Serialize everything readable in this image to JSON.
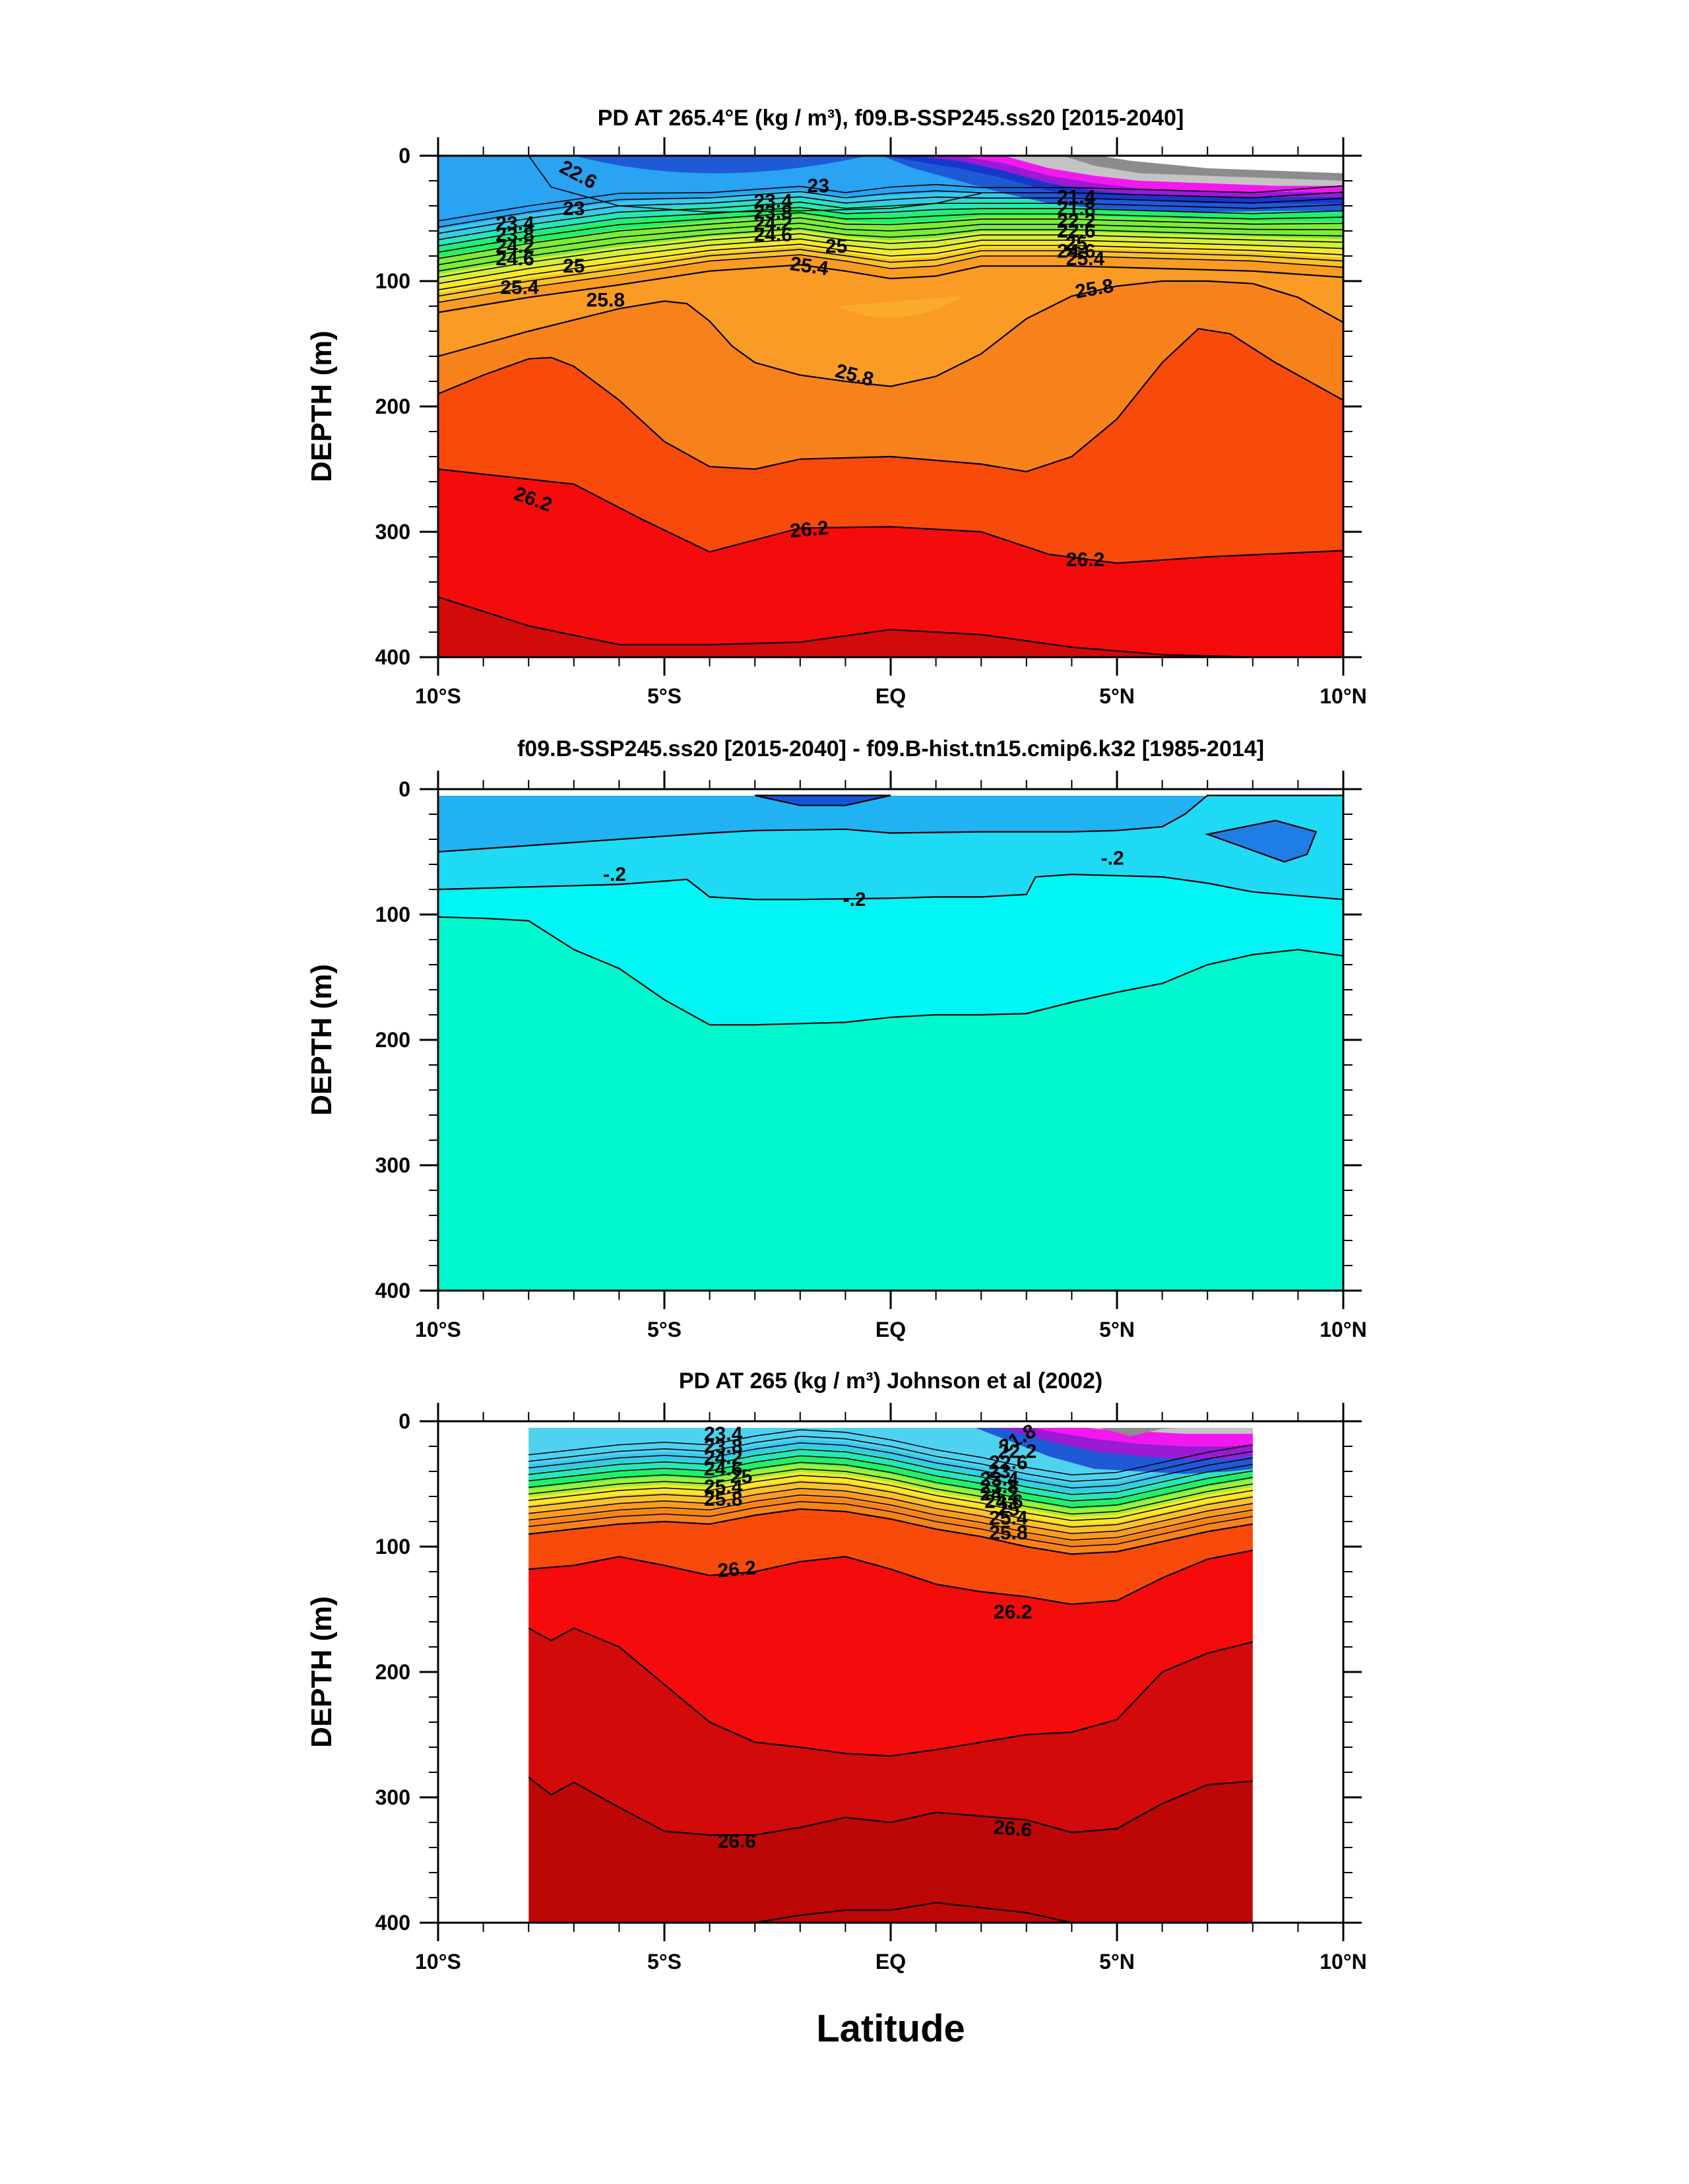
{
  "figure": {
    "xlabel": "Latitude",
    "colors": {
      "g230": "#29a3f2",
      "g226": "#1f5ad6",
      "g225": "#1737cc",
      "g238": "#4fd2f0",
      "g244": "#23f06a",
      "g246": "#a8f038",
      "g250": "#f7e92a",
      "g254": "#f99b24",
      "g258": "#f7821c",
      "g262": "#f74a0b",
      "g266": "#f50b0b",
      "g270": "#d20a0a",
      "g275": "#bd0606",
      "purple": "#9a1ad6",
      "magenta": "#f418f0",
      "gray1": "#c4c4c4",
      "gray2": "#8c8c8c",
      "d_m3": "#1f7de6",
      "d_m2": "#21b2f2",
      "d_m1": "#1fdaf5",
      "d_m0": "#00f6f4",
      "d_0": "#00f8cf",
      "d_deep": "#1454dc"
    }
  },
  "chart_data": [
    {
      "type": "contour",
      "title": "PD AT 265.4°E (kg / m³), f09.B-SSP245.ss20 [2015-2040]",
      "xlabel": "",
      "ylabel": "DEPTH (m)",
      "xlim": [
        -10,
        10
      ],
      "ylim": [
        400,
        0
      ],
      "x_ticks": [
        "10°S",
        "5°S",
        "EQ",
        "5°N",
        "10°N"
      ],
      "y_ticks": [
        "0",
        "100",
        "200",
        "300",
        "400"
      ],
      "contour_labels": [
        "22.6",
        "23",
        "23",
        "23.4",
        "23.8",
        "24.2",
        "24.6",
        "25",
        "25",
        "25.4",
        "25.4",
        "25.8",
        "25.8",
        "25.8",
        "26.2",
        "26.2",
        "26.2",
        "21.4",
        "25.4",
        "23.4",
        "23.8",
        "24.2",
        "24.6",
        "21.8",
        "22.2",
        "22.6",
        "25",
        "24.6"
      ],
      "isopycnals": [
        {
          "level": 26.2,
          "x": [
            -10,
            -7,
            -5.5,
            -4,
            -2,
            0,
            2,
            3.5,
            5,
            7,
            10
          ],
          "depth": [
            250,
            262,
            290,
            316,
            297,
            296,
            300,
            318,
            325,
            320,
            315
          ]
        },
        {
          "level": 26.0,
          "x": [
            -10,
            -9,
            -8,
            -7.5,
            -7,
            -6,
            -5,
            -4,
            -3,
            -2,
            0,
            2,
            3,
            4,
            5,
            6,
            6.8,
            7.5,
            8.5,
            10
          ],
          "depth": [
            190,
            175,
            162,
            161,
            168,
            195,
            228,
            248,
            250,
            242,
            240,
            246,
            252,
            240,
            210,
            165,
            138,
            142,
            165,
            195
          ]
        },
        {
          "level": 25.8,
          "x": [
            -10,
            -8,
            -6,
            -5,
            -4.5,
            -4,
            -3.5,
            -3,
            -2,
            -1,
            0,
            1,
            2,
            3,
            4,
            5,
            6,
            7,
            8,
            9,
            10
          ],
          "depth": [
            160,
            140,
            122,
            116,
            118,
            132,
            152,
            165,
            175,
            180,
            184,
            176,
            158,
            130,
            112,
            104,
            100,
            100,
            102,
            113,
            133
          ]
        },
        {
          "level": 25.4,
          "x": [
            -10,
            -8,
            -6,
            -4,
            -2,
            -1,
            0,
            1,
            2,
            4,
            6,
            8,
            10
          ],
          "depth": [
            125,
            113,
            103,
            92,
            87,
            92,
            98,
            96,
            88,
            88,
            90,
            92,
            97
          ]
        }
      ]
    },
    {
      "type": "contour",
      "title": "f09.B-SSP245.ss20 [2015-2040] - f09.B-hist.tn15.cmip6.k32 [1985-2014]",
      "xlabel": "",
      "ylabel": "DEPTH (m)",
      "xlim": [
        -10,
        10
      ],
      "ylim": [
        400,
        0
      ],
      "x_ticks": [
        "10°S",
        "5°S",
        "EQ",
        "5°N",
        "10°N"
      ],
      "y_ticks": [
        "0",
        "100",
        "200",
        "300",
        "400"
      ],
      "contour_labels": [
        "-.2",
        "-.2",
        "-.2"
      ],
      "isopleths": [
        {
          "level": 0.0,
          "x": [
            -10,
            -9,
            -8,
            -7,
            -6,
            -5,
            -4,
            -3,
            -2,
            -1,
            0,
            1,
            2,
            3,
            4,
            5,
            6,
            7,
            8,
            9,
            10
          ],
          "depth": [
            102,
            103,
            105,
            128,
            143,
            168,
            188,
            188,
            187,
            186,
            182,
            180,
            180,
            179,
            170,
            162,
            155,
            140,
            132,
            128,
            133
          ]
        },
        {
          "level": -0.1,
          "x": [
            -10,
            -8,
            -6,
            -4.5,
            -4,
            -3,
            -2,
            0,
            1,
            2,
            3,
            3.2,
            4,
            6,
            7,
            8,
            10
          ],
          "depth": [
            80,
            78,
            76,
            72,
            86,
            88,
            88,
            87,
            86,
            86,
            84,
            70,
            68,
            70,
            75,
            82,
            88
          ]
        },
        {
          "level": -0.2,
          "x": [
            -10,
            -8,
            -6,
            -4,
            -3,
            -1,
            0,
            2,
            4,
            5,
            6,
            6.5,
            7,
            10
          ],
          "depth": [
            50,
            45,
            40,
            35,
            33,
            32,
            35,
            34,
            34,
            33,
            30,
            20,
            5,
            5
          ]
        },
        {
          "level": -0.3,
          "x": [
            -3,
            -2,
            -1,
            0,
            -3
          ],
          "depth": [
            5,
            13,
            13,
            5,
            5
          ]
        },
        {
          "level": -0.3,
          "x": [
            7,
            8.5,
            9.4,
            9.2,
            8.7,
            7
          ],
          "depth": [
            36,
            25,
            34,
            52,
            58,
            36
          ]
        }
      ]
    },
    {
      "type": "contour",
      "title": "PD AT 265 (kg / m³) Johnson et al (2002)",
      "xlabel": "Latitude",
      "ylabel": "DEPTH (m)",
      "xlim": [
        -10,
        10
      ],
      "ylim": [
        400,
        0
      ],
      "data_extent_x": [
        -8,
        8
      ],
      "x_ticks": [
        "10°S",
        "5°S",
        "EQ",
        "5°N",
        "10°N"
      ],
      "y_ticks": [
        "0",
        "100",
        "200",
        "300",
        "400"
      ],
      "contour_labels": [
        "23.4",
        "23.8",
        "24.2",
        "24.6",
        "25",
        "25.4",
        "25.8",
        "26.2",
        "26.2",
        "26.6",
        "26.6",
        "21.8",
        "22.2",
        "22.6",
        "23",
        "23.4",
        "23.8",
        "24.2",
        "24.6",
        "25",
        "25.4",
        "25.8"
      ],
      "isopycnals": [
        {
          "level": 26.6,
          "x": [
            -8,
            -7.5,
            -7,
            -6,
            -5,
            -4,
            -3,
            -2,
            -1,
            0,
            1,
            2,
            3,
            4,
            5,
            6,
            7,
            8
          ],
          "depth": [
            284,
            298,
            288,
            308,
            327,
            330,
            330,
            324,
            316,
            320,
            312,
            315,
            318,
            328,
            325,
            305,
            290,
            287
          ]
        },
        {
          "level": 26.4,
          "x": [
            -8,
            -7.5,
            -7,
            -6,
            -5,
            -4,
            -3,
            -2,
            -1,
            0,
            1,
            2,
            3,
            4,
            5,
            6,
            7,
            8
          ],
          "depth": [
            165,
            175,
            165,
            180,
            210,
            240,
            256,
            260,
            265,
            267,
            262,
            256,
            250,
            248,
            238,
            200,
            185,
            176
          ]
        },
        {
          "level": 26.2,
          "x": [
            -8,
            -7,
            -6,
            -5,
            -4,
            -3,
            -2,
            -1,
            0,
            1,
            2,
            3,
            4,
            5,
            6,
            7,
            8
          ],
          "depth": [
            118,
            115,
            108,
            115,
            123,
            120,
            112,
            108,
            118,
            130,
            136,
            140,
            146,
            143,
            125,
            110,
            103
          ]
        },
        {
          "level": 26.0,
          "x": [
            -8,
            -6,
            -5,
            -4,
            -3,
            -2,
            -1,
            0,
            1,
            2,
            3,
            4,
            5,
            6,
            7,
            8
          ],
          "depth": [
            90,
            82,
            80,
            82,
            75,
            70,
            72,
            78,
            86,
            92,
            100,
            106,
            104,
            96,
            88,
            82
          ]
        }
      ]
    }
  ]
}
